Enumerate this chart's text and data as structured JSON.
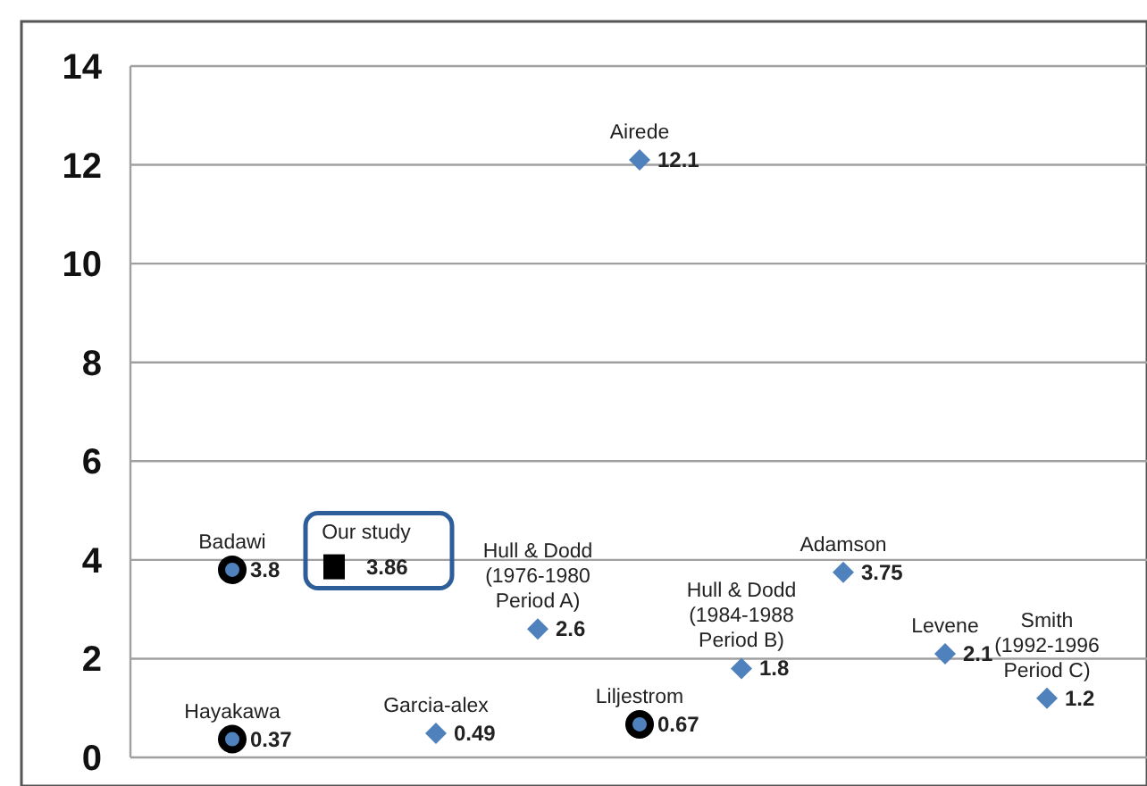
{
  "chart_data": {
    "type": "scatter",
    "categories": [
      null,
      null,
      null,
      null,
      null,
      null,
      null,
      null,
      null
    ],
    "series": [
      {
        "color": "#4f81bd",
        "marker": "diamond",
        "values": [
          null,
          null,
          0.49,
          2.6,
          12.1,
          1.8,
          3.75,
          2.1,
          1.2
        ]
      },
      {
        "color": "#000000",
        "marker": "circle",
        "values": [
          3.8,
          null,
          null,
          null,
          0.67,
          null,
          null,
          null,
          null
        ]
      },
      {
        "color": "#000000",
        "marker": "circle",
        "values": [
          0.37,
          null,
          null,
          null,
          null,
          null,
          null,
          null,
          null
        ]
      },
      {
        "color": "#000000",
        "marker": "square",
        "values": [
          null,
          3.86,
          null,
          null,
          null,
          null,
          null,
          null,
          null
        ]
      }
    ],
    "annotations": [
      "Garcia-alex",
      "Hull & Dodd\n(1976-1980\nPeriod A)",
      "Airede",
      "Hull & Dodd\n(1984-1988\nPeriod B)",
      "Adamson",
      "Levene",
      "Smith\n(1992-1996\nPeriod C)",
      "Badawi",
      "Liljestrom",
      "Hayakawa",
      "Our study"
    ],
    "ylim": [
      0,
      14
    ],
    "yticks": [
      0,
      2,
      4,
      6,
      8,
      10,
      12,
      14
    ],
    "grid": "y",
    "data_labels": true,
    "tick_labels": "y"
  }
}
